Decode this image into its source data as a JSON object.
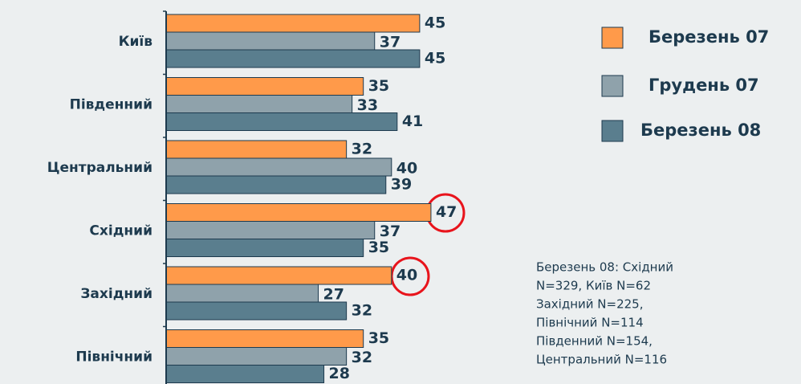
{
  "chart_data": {
    "type": "bar",
    "orientation": "horizontal",
    "categories": [
      "Київ",
      "Південний",
      "Центральний",
      "Східний",
      "Західний",
      "Північний"
    ],
    "series": [
      {
        "name": "Березень 07",
        "color": "#ff9a4a",
        "values": [
          45,
          35,
          32,
          47,
          40,
          35
        ]
      },
      {
        "name": "Грудень 07",
        "color": "#8fa2ab",
        "values": [
          37,
          33,
          40,
          37,
          27,
          32
        ]
      },
      {
        "name": "Березень 08",
        "color": "#5a7e8e",
        "values": [
          45,
          41,
          39,
          35,
          32,
          28
        ]
      }
    ],
    "xlim": [
      0,
      50
    ],
    "note": [
      "Березень 08: Східний",
      "N=329, Київ N=62",
      "Західний N=225,",
      "Північний N=114",
      "Південний N=154,",
      "Центральний N=116"
    ]
  }
}
